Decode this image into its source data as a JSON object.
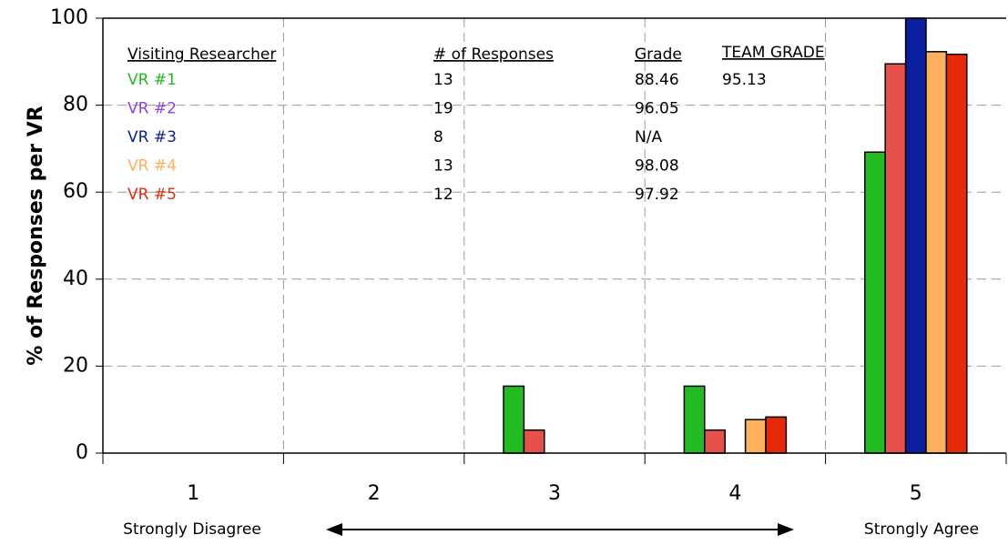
{
  "chart_data": {
    "type": "bar",
    "y_label": "% of Responses per VR",
    "categories": [
      "1",
      "2",
      "3",
      "4",
      "5"
    ],
    "series": [
      {
        "name": "VR #1",
        "color": "#22bb22",
        "label_color": "#22bb22",
        "values": [
          0,
          0,
          15.4,
          15.4,
          69.2
        ]
      },
      {
        "name": "VR #2",
        "color": "#e8504c",
        "label_color": "#8844ee",
        "values": [
          0,
          0,
          5.3,
          5.3,
          89.5
        ]
      },
      {
        "name": "VR #3",
        "color": "#0a1e9e",
        "label_color": "#0a1e9e",
        "values": [
          0,
          0,
          0,
          0,
          100
        ]
      },
      {
        "name": "VR #4",
        "color": "#ffb05a",
        "label_color": "#ffb05a",
        "values": [
          0,
          0,
          0,
          7.7,
          92.3
        ]
      },
      {
        "name": "VR #5",
        "color": "#e62a08",
        "label_color": "#e62a08",
        "values": [
          0,
          0,
          0,
          8.3,
          91.7
        ]
      }
    ],
    "ylim": [
      0,
      100
    ],
    "yticks": [
      0,
      20,
      40,
      60,
      80,
      100
    ],
    "grid": true,
    "annotations": {
      "left": "Strongly Disagree",
      "right": "Strongly Agree"
    },
    "table": {
      "headers": [
        "Visiting Researcher",
        "# of Responses",
        "Grade",
        "TEAM GRADE"
      ],
      "responses": [
        13,
        19,
        8,
        13,
        12
      ],
      "grades": [
        88.46,
        96.05,
        "N/A",
        98.08,
        97.92
      ],
      "team_grade": 95.13
    }
  }
}
